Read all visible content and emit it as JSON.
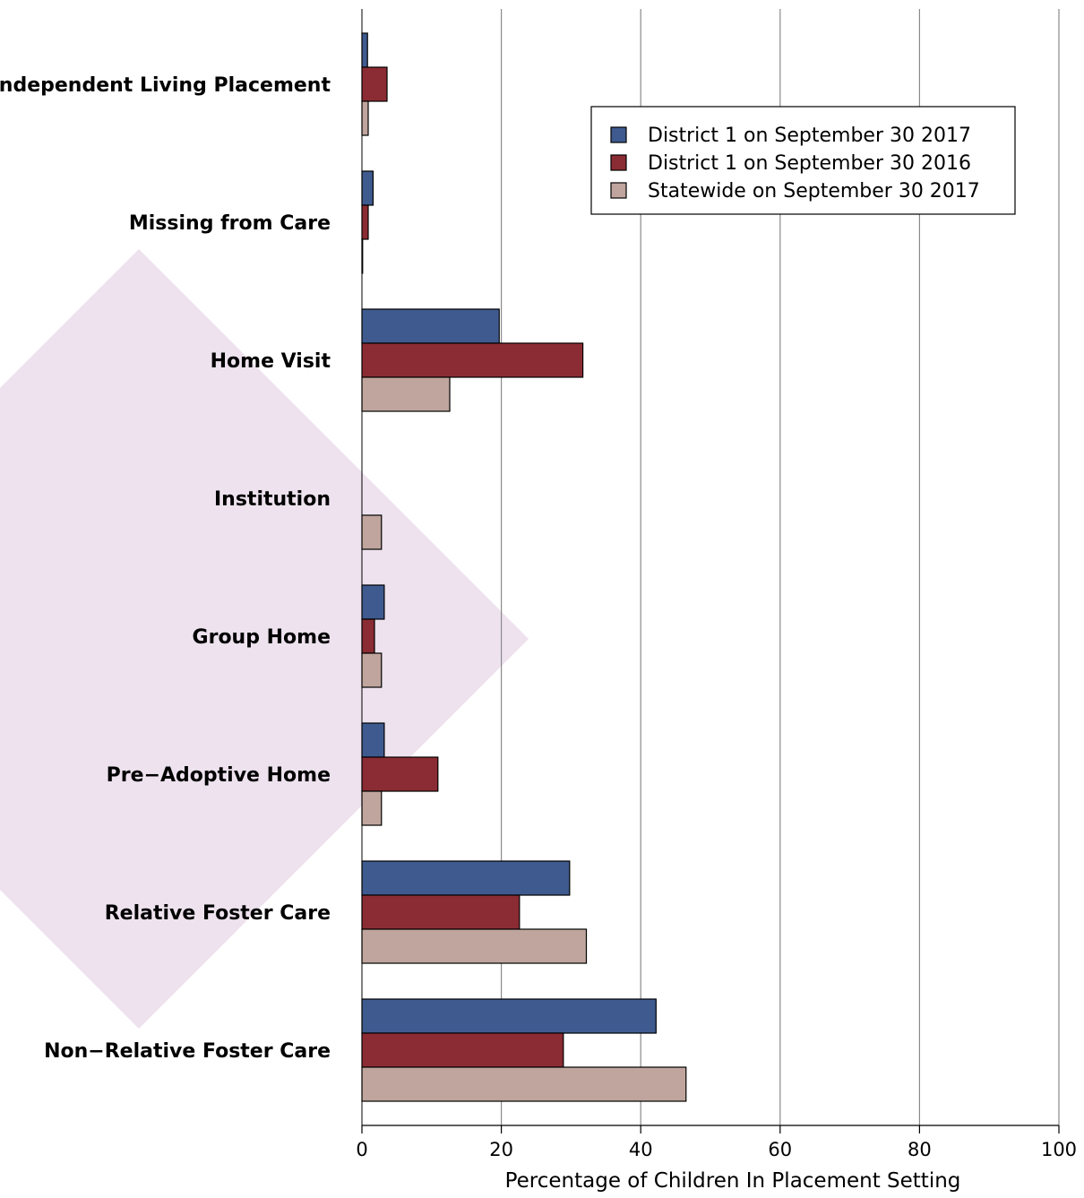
{
  "chart_data": {
    "type": "bar",
    "orientation": "horizontal",
    "categories": [
      "Independent Living Placement",
      "Missing from Care",
      "Home Visit",
      "Institution",
      "Group Home",
      "Pre−Adoptive Home",
      "Relative Foster Care",
      "Non−Relative Foster Care"
    ],
    "series": [
      {
        "name": "District 1 on September 30 2017",
        "color": "#3f5a8e",
        "values": [
          0.8,
          1.6,
          19.7,
          0.0,
          3.2,
          3.2,
          29.8,
          42.2
        ]
      },
      {
        "name": "District 1 on September 30 2016",
        "color": "#8b2b33",
        "values": [
          3.6,
          0.9,
          31.7,
          0.0,
          1.8,
          10.9,
          22.6,
          28.9
        ]
      },
      {
        "name": "Statewide on September 30 2017",
        "color": "#bfa59d",
        "values": [
          0.9,
          0.1,
          12.6,
          2.8,
          2.8,
          2.8,
          32.2,
          46.5
        ]
      }
    ],
    "xlabel": "Percentage of Children In Placement Setting",
    "xlim": [
      0,
      100
    ],
    "xticks": [
      0,
      20,
      40,
      60,
      80,
      100
    ],
    "grid": "vertical",
    "legend_position": "top-right",
    "decoration_color": "#ede2ee"
  }
}
